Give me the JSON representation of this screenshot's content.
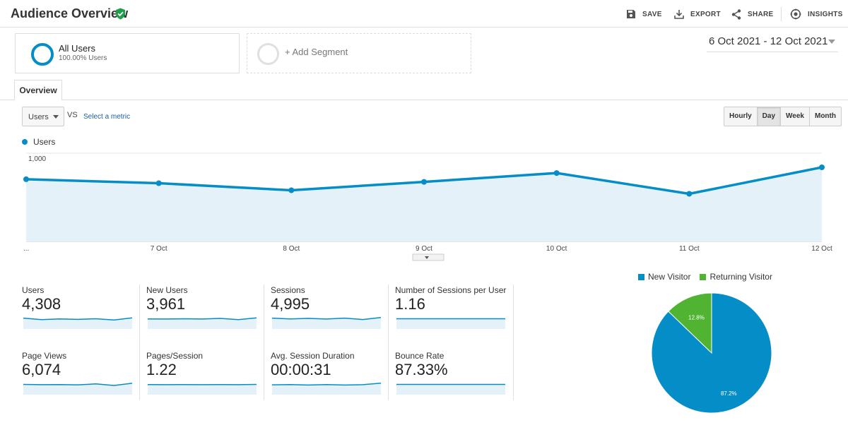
{
  "header": {
    "title": "Audience Overview",
    "actions": {
      "save": "SAVE",
      "export": "EXPORT",
      "share": "SHARE",
      "insights": "INSIGHTS"
    }
  },
  "segments": {
    "all_users": {
      "name": "All Users",
      "percent": "100.00% Users"
    },
    "add_label": "+ Add Segment"
  },
  "date_range": "6 Oct 2021 - 12 Oct 2021",
  "tabs": [
    {
      "label": "Overview",
      "active": true
    }
  ],
  "metric_selector": {
    "selected": "Users",
    "vs_label": "VS",
    "select_metric_link": "Select a metric"
  },
  "granularity": [
    {
      "label": "Hourly",
      "active": false
    },
    {
      "label": "Day",
      "active": true
    },
    {
      "label": "Week",
      "active": false
    },
    {
      "label": "Month",
      "active": false
    }
  ],
  "colors": {
    "primary": "#058dc7",
    "secondary": "#50b432",
    "area": "#e5f1f8"
  },
  "chart_data": [
    {
      "type": "line",
      "series": [
        {
          "name": "Users",
          "values": [
            705,
            660,
            580,
            675,
            775,
            540,
            840
          ]
        }
      ],
      "x": [
        "...",
        "7 Oct",
        "8 Oct",
        "9 Oct",
        "10 Oct",
        "11 Oct",
        "12 Oct"
      ],
      "y_ticks": [
        "1,000",
        "500"
      ],
      "ylim": [
        0,
        1000
      ],
      "grid": true,
      "legend": "top-left"
    },
    {
      "type": "pie",
      "series": [
        {
          "name": "New Visitor",
          "value": 87.2,
          "label": "87.2%"
        },
        {
          "name": "Returning Visitor",
          "value": 12.8,
          "label": "12.8%"
        }
      ],
      "legend": "top"
    }
  ],
  "scorecards": [
    {
      "label": "Users",
      "value": "4,308",
      "spark": [
        7,
        6,
        6.5,
        6.2,
        6.6,
        5.8,
        7.2
      ]
    },
    {
      "label": "New Users",
      "value": "3,961",
      "spark": [
        6.5,
        6.4,
        6.6,
        6.4,
        6.8,
        6.0,
        7.2
      ]
    },
    {
      "label": "Sessions",
      "value": "4,995",
      "spark": [
        7,
        6.5,
        6.8,
        6.4,
        7.0,
        6.1,
        7.4
      ]
    },
    {
      "label": "Number of Sessions per User",
      "value": "1.16",
      "spark": [
        6.6,
        6.6,
        6.6,
        6.6,
        6.6,
        6.6,
        6.6
      ]
    },
    {
      "label": "Page Views",
      "value": "6,074",
      "spark": [
        6.6,
        6.4,
        6.5,
        6.3,
        6.9,
        5.9,
        7.3
      ]
    },
    {
      "label": "Pages/Session",
      "value": "1.22",
      "spark": [
        6.5,
        6.4,
        6.5,
        6.4,
        6.5,
        6.4,
        6.6
      ]
    },
    {
      "label": "Avg. Session Duration",
      "value": "00:00:31",
      "spark": [
        6.3,
        6.5,
        6.2,
        6.5,
        6.2,
        6.4,
        7.4
      ]
    },
    {
      "label": "Bounce Rate",
      "value": "87.33%",
      "spark": [
        6.6,
        6.6,
        6.6,
        6.6,
        6.6,
        6.6,
        6.6
      ]
    }
  ]
}
